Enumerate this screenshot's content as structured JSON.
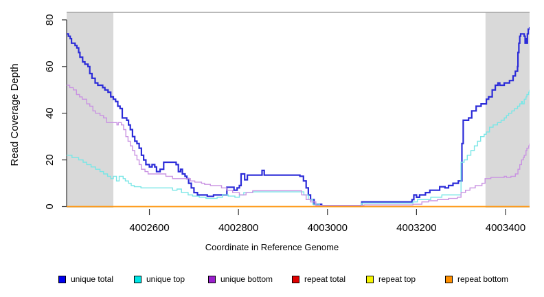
{
  "chart_data": {
    "type": "line",
    "style": "step",
    "title": "",
    "xlabel": "Coordinate in Reference Genome",
    "ylabel": "Read Coverage Depth",
    "xlim": [
      4002414,
      4003454
    ],
    "ylim": [
      0,
      80
    ],
    "x_ticks": [
      4002600,
      4002800,
      4003000,
      4003200,
      4003400
    ],
    "y_ticks": [
      0,
      20,
      40,
      60,
      80
    ],
    "grid": false,
    "legend_position": "bottom",
    "shaded_color": "#d9d9d9",
    "top_border_color": "#a3a3a3",
    "axis_color": "#333333",
    "shaded_regions": [
      {
        "x0": 4002414,
        "x1": 4002519
      },
      {
        "x0": 4003355,
        "x1": 4003454
      }
    ],
    "series": [
      {
        "name": "unique total",
        "legend_color": "#0000ee",
        "stroke": "#2b2bd8",
        "width": 2.2,
        "points": [
          [
            4002414,
            74
          ],
          [
            4002418,
            73
          ],
          [
            4002422,
            72
          ],
          [
            4002425,
            70
          ],
          [
            4002433,
            69
          ],
          [
            4002437,
            68
          ],
          [
            4002441,
            66
          ],
          [
            4002444,
            64
          ],
          [
            4002450,
            62
          ],
          [
            4002455,
            61
          ],
          [
            4002462,
            60
          ],
          [
            4002466,
            57
          ],
          [
            4002471,
            55
          ],
          [
            4002478,
            53
          ],
          [
            4002484,
            52
          ],
          [
            4002495,
            51
          ],
          [
            4002500,
            50
          ],
          [
            4002507,
            49
          ],
          [
            4002513,
            47
          ],
          [
            4002519,
            46
          ],
          [
            4002524,
            45
          ],
          [
            4002529,
            43
          ],
          [
            4002534,
            42
          ],
          [
            4002539,
            38
          ],
          [
            4002549,
            37
          ],
          [
            4002553,
            35
          ],
          [
            4002557,
            33
          ],
          [
            4002562,
            30
          ],
          [
            4002567,
            28
          ],
          [
            4002572,
            27
          ],
          [
            4002577,
            25
          ],
          [
            4002582,
            22
          ],
          [
            4002587,
            20
          ],
          [
            4002592,
            18
          ],
          [
            4002600,
            17
          ],
          [
            4002606,
            18
          ],
          [
            4002612,
            17
          ],
          [
            4002616,
            15
          ],
          [
            4002624,
            16
          ],
          [
            4002632,
            19
          ],
          [
            4002660,
            18
          ],
          [
            4002665,
            15
          ],
          [
            4002670,
            16
          ],
          [
            4002674,
            14
          ],
          [
            4002680,
            13
          ],
          [
            4002684,
            12
          ],
          [
            4002688,
            10
          ],
          [
            4002694,
            8
          ],
          [
            4002700,
            6
          ],
          [
            4002708,
            5
          ],
          [
            4002724,
            5
          ],
          [
            4002730,
            4.4
          ],
          [
            4002744,
            5
          ],
          [
            4002774,
            8.3
          ],
          [
            4002790,
            7
          ],
          [
            4002797,
            8
          ],
          [
            4002802,
            9
          ],
          [
            4002806,
            14
          ],
          [
            4002814,
            11.5
          ],
          [
            4002820,
            13.5
          ],
          [
            4002853,
            15.5
          ],
          [
            4002858,
            13.5
          ],
          [
            4002938,
            13
          ],
          [
            4002946,
            11
          ],
          [
            4002952,
            8
          ],
          [
            4002957,
            5
          ],
          [
            4002962,
            3
          ],
          [
            4002970,
            1
          ],
          [
            4002987,
            0.4
          ],
          [
            4003077,
            2
          ],
          [
            4003190,
            3
          ],
          [
            4003194,
            5
          ],
          [
            4003200,
            4
          ],
          [
            4003207,
            5
          ],
          [
            4003220,
            6
          ],
          [
            4003230,
            7
          ],
          [
            4003252,
            8.5
          ],
          [
            4003264,
            8
          ],
          [
            4003272,
            9
          ],
          [
            4003282,
            10
          ],
          [
            4003294,
            11
          ],
          [
            4003302,
            27
          ],
          [
            4003305,
            37
          ],
          [
            4003317,
            38
          ],
          [
            4003324,
            41
          ],
          [
            4003334,
            43
          ],
          [
            4003345,
            44
          ],
          [
            4003357,
            46
          ],
          [
            4003362,
            47
          ],
          [
            4003370,
            50
          ],
          [
            4003377,
            52
          ],
          [
            4003383,
            53
          ],
          [
            4003387,
            52
          ],
          [
            4003397,
            53
          ],
          [
            4003409,
            54
          ],
          [
            4003417,
            56
          ],
          [
            4003422,
            58
          ],
          [
            4003427,
            60
          ],
          [
            4003428,
            66
          ],
          [
            4003430,
            70
          ],
          [
            4003432,
            73
          ],
          [
            4003434,
            74
          ],
          [
            4003442,
            73
          ],
          [
            4003444,
            70
          ],
          [
            4003445,
            72
          ],
          [
            4003447,
            70
          ],
          [
            4003449,
            74
          ],
          [
            4003451,
            76
          ],
          [
            4003454,
            77
          ]
        ]
      },
      {
        "name": "unique top",
        "legend_color": "#00e5e5",
        "stroke": "#79e6e6",
        "width": 1.4,
        "points": [
          [
            4002414,
            22
          ],
          [
            4002426,
            21
          ],
          [
            4002441,
            20
          ],
          [
            4002451,
            19
          ],
          [
            4002459,
            18
          ],
          [
            4002469,
            17
          ],
          [
            4002479,
            16
          ],
          [
            4002489,
            15
          ],
          [
            4002497,
            14
          ],
          [
            4002506,
            13
          ],
          [
            4002513,
            12
          ],
          [
            4002519,
            13
          ],
          [
            4002526,
            11
          ],
          [
            4002532,
            13
          ],
          [
            4002541,
            12
          ],
          [
            4002546,
            11
          ],
          [
            4002553,
            10
          ],
          [
            4002559,
            9
          ],
          [
            4002566,
            8.5
          ],
          [
            4002581,
            8
          ],
          [
            4002642,
            8
          ],
          [
            4002652,
            7
          ],
          [
            4002662,
            7.5
          ],
          [
            4002672,
            6
          ],
          [
            4002687,
            5
          ],
          [
            4002697,
            4.5
          ],
          [
            4002712,
            4
          ],
          [
            4002727,
            3.5
          ],
          [
            4002752,
            4
          ],
          [
            4002764,
            5
          ],
          [
            4002777,
            4.5
          ],
          [
            4002792,
            4
          ],
          [
            4002802,
            5
          ],
          [
            4002812,
            6
          ],
          [
            4002832,
            6.3
          ],
          [
            4002932,
            6.3
          ],
          [
            4002947,
            5
          ],
          [
            4002957,
            3
          ],
          [
            4002967,
            1
          ],
          [
            4002982,
            0.3
          ],
          [
            4003077,
            1.5
          ],
          [
            4003192,
            2
          ],
          [
            4003202,
            3
          ],
          [
            4003232,
            4
          ],
          [
            4003257,
            5
          ],
          [
            4003295,
            5
          ],
          [
            4003300,
            19
          ],
          [
            4003307,
            20
          ],
          [
            4003314,
            22
          ],
          [
            4003322,
            24
          ],
          [
            4003330,
            26
          ],
          [
            4003337,
            28
          ],
          [
            4003344,
            30
          ],
          [
            4003352,
            31
          ],
          [
            4003357,
            32
          ],
          [
            4003364,
            34
          ],
          [
            4003372,
            35
          ],
          [
            4003382,
            36
          ],
          [
            4003390,
            37
          ],
          [
            4003397,
            38
          ],
          [
            4003402,
            39
          ],
          [
            4003407,
            40
          ],
          [
            4003414,
            41
          ],
          [
            4003420,
            42
          ],
          [
            4003427,
            43
          ],
          [
            4003432,
            44
          ],
          [
            4003436,
            45
          ],
          [
            4003438,
            44
          ],
          [
            4003442,
            46
          ],
          [
            4003446,
            47
          ],
          [
            4003448,
            48
          ],
          [
            4003452,
            49
          ],
          [
            4003454,
            50
          ]
        ]
      },
      {
        "name": "unique bottom",
        "legend_color": "#9b20ce",
        "stroke": "#c993e2",
        "width": 1.4,
        "points": [
          [
            4002414,
            52
          ],
          [
            4002421,
            51
          ],
          [
            4002429,
            50
          ],
          [
            4002436,
            48
          ],
          [
            4002443,
            47
          ],
          [
            4002449,
            46
          ],
          [
            4002459,
            44
          ],
          [
            4002466,
            43
          ],
          [
            4002473,
            41
          ],
          [
            4002479,
            40
          ],
          [
            4002489,
            39
          ],
          [
            4002497,
            38
          ],
          [
            4002504,
            36
          ],
          [
            4002522,
            36
          ],
          [
            4002527,
            35
          ],
          [
            4002530,
            36
          ],
          [
            4002537,
            35
          ],
          [
            4002542,
            33
          ],
          [
            4002547,
            30
          ],
          [
            4002552,
            28
          ],
          [
            4002557,
            26
          ],
          [
            4002562,
            24
          ],
          [
            4002567,
            22
          ],
          [
            4002572,
            20
          ],
          [
            4002577,
            18
          ],
          [
            4002582,
            16
          ],
          [
            4002590,
            15
          ],
          [
            4002597,
            14
          ],
          [
            4002627,
            14
          ],
          [
            4002637,
            13
          ],
          [
            4002652,
            12
          ],
          [
            4002682,
            12
          ],
          [
            4002692,
            11
          ],
          [
            4002702,
            10.5
          ],
          [
            4002717,
            10
          ],
          [
            4002724,
            9.5
          ],
          [
            4002737,
            9
          ],
          [
            4002762,
            8
          ],
          [
            4002774,
            7
          ],
          [
            4002787,
            6
          ],
          [
            4002802,
            5
          ],
          [
            4002817,
            6
          ],
          [
            4002832,
            6.8
          ],
          [
            4002932,
            6.8
          ],
          [
            4002942,
            5
          ],
          [
            4002952,
            3
          ],
          [
            4002962,
            2
          ],
          [
            4002974,
            0.5
          ],
          [
            4003082,
            0.7
          ],
          [
            4003192,
            1
          ],
          [
            4003212,
            2
          ],
          [
            4003227,
            2.5
          ],
          [
            4003247,
            3
          ],
          [
            4003272,
            3.5
          ],
          [
            4003292,
            4
          ],
          [
            4003300,
            6
          ],
          [
            4003310,
            7
          ],
          [
            4003320,
            8
          ],
          [
            4003332,
            9
          ],
          [
            4003347,
            10
          ],
          [
            4003354,
            12
          ],
          [
            4003367,
            12.5
          ],
          [
            4003397,
            13
          ],
          [
            4003402,
            12.5
          ],
          [
            4003412,
            13
          ],
          [
            4003422,
            14
          ],
          [
            4003428,
            16
          ],
          [
            4003432,
            18
          ],
          [
            4003436,
            20
          ],
          [
            4003440,
            21
          ],
          [
            4003442,
            22
          ],
          [
            4003446,
            24
          ],
          [
            4003448,
            25
          ],
          [
            4003452,
            26
          ],
          [
            4003454,
            27
          ]
        ]
      },
      {
        "name": "repeat total",
        "legend_color": "#e00000",
        "stroke": "#e00000",
        "width": 1.4,
        "points": [
          [
            4002414,
            0
          ],
          [
            4003454,
            0
          ]
        ]
      },
      {
        "name": "repeat top",
        "legend_color": "#f5f500",
        "stroke": "#f5f500",
        "width": 1.4,
        "points": [
          [
            4002414,
            0
          ],
          [
            4003454,
            0
          ]
        ]
      },
      {
        "name": "repeat bottom",
        "legend_color": "#ff8f00",
        "stroke": "#ff9614",
        "width": 1.6,
        "points": [
          [
            4002414,
            0
          ],
          [
            4003454,
            0
          ]
        ]
      }
    ]
  }
}
